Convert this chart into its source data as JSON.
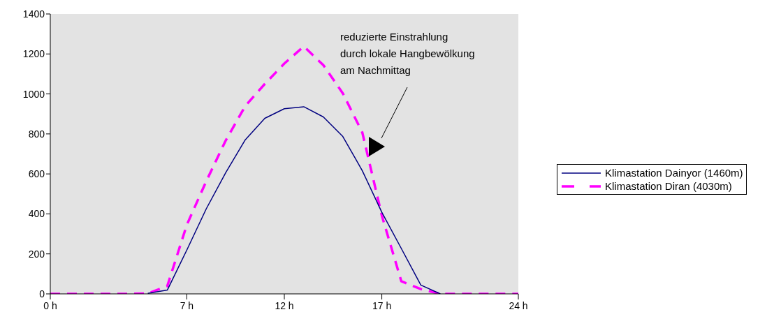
{
  "chart_data": {
    "type": "line",
    "x": [
      0,
      1,
      2,
      3,
      4,
      5,
      6,
      7,
      8,
      9,
      10,
      11,
      12,
      13,
      14,
      15,
      16,
      17,
      18,
      19,
      20,
      21,
      22,
      23,
      24
    ],
    "series": [
      {
        "name": "Klimastation Dainyor (1460m)",
        "color": "#000080",
        "line_style": "solid",
        "values": [
          null,
          null,
          null,
          null,
          null,
          3,
          19,
          219,
          426,
          607,
          771,
          878,
          926,
          936,
          885,
          787,
          616,
          408,
          227,
          44,
          0,
          null,
          null,
          null,
          null
        ]
      },
      {
        "name": "Klimastation Diran (4030m)",
        "color": "#ff00ff",
        "line_style": "dashed",
        "values": [
          0,
          0,
          0,
          0,
          0,
          2,
          39,
          345,
          564,
          768,
          940,
          1050,
          1152,
          1238,
          1144,
          1003,
          807,
          392,
          63,
          24,
          0,
          0,
          0,
          0,
          0
        ]
      }
    ],
    "xlim": [
      0,
      24
    ],
    "xticks": [
      {
        "value": 0,
        "label": "0 h"
      },
      {
        "value": 7,
        "label": "7 h"
      },
      {
        "value": 12,
        "label": "12 h"
      },
      {
        "value": 17,
        "label": "17 h"
      },
      {
        "value": 24,
        "label": "24 h"
      }
    ],
    "ylim": [
      0,
      1400
    ],
    "yticks": [
      0,
      200,
      400,
      600,
      800,
      1000,
      1200,
      1400
    ],
    "grid": false,
    "legend": "right",
    "marker": "none",
    "annotations": [
      "reduzierte Einstrahlung\ndurch lokale Hangbewölkung\nam Nachmittag"
    ]
  }
}
